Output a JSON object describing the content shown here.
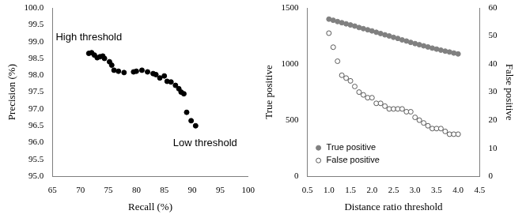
{
  "chart_data": [
    {
      "type": "scatter",
      "x_label": "Recall (%)",
      "y_label": "Precision (%)",
      "xlim": [
        65,
        100
      ],
      "xticks": [
        65,
        70,
        75,
        80,
        85,
        90,
        95,
        100
      ],
      "ylim": [
        95,
        100
      ],
      "yticks": [
        {
          "value": 95,
          "label": "95.0"
        },
        {
          "value": 95.5,
          "label": "95.5"
        },
        {
          "value": 96,
          "label": "96.0"
        },
        {
          "value": 96.5,
          "label": "96.5"
        },
        {
          "value": 97,
          "label": "97.0"
        },
        {
          "value": 97.5,
          "label": "97.5"
        },
        {
          "value": 98,
          "label": "98.0"
        },
        {
          "value": 98.5,
          "label": "98.5"
        },
        {
          "value": 99,
          "label": "99.0"
        },
        {
          "value": 99.5,
          "label": "99.5"
        },
        {
          "value": 100,
          "label": "100.0"
        }
      ],
      "grid": false,
      "annotations": [
        {
          "text": "High threshold"
        },
        {
          "text": "Low threshold"
        }
      ],
      "color": "#000000",
      "marker": "circle",
      "x": [
        71.5,
        72.0,
        72.5,
        73.0,
        73.5,
        74.0,
        74.3,
        75.2,
        75.6,
        76.0,
        76.8,
        77.8,
        79.5,
        80.0,
        81.0,
        82.0,
        83.0,
        83.5,
        84.2,
        85.0,
        85.5,
        86.2,
        87.0,
        87.6,
        88.0,
        88.5,
        89.0,
        89.8,
        90.6
      ],
      "values": [
        98.65,
        98.67,
        98.6,
        98.52,
        98.55,
        98.57,
        98.5,
        98.4,
        98.3,
        98.15,
        98.12,
        98.08,
        98.1,
        98.12,
        98.15,
        98.1,
        98.05,
        98.02,
        97.92,
        97.98,
        97.82,
        97.8,
        97.7,
        97.6,
        97.5,
        97.45,
        96.9,
        96.65,
        96.5
      ]
    },
    {
      "type": "scatter",
      "x_label": "Distance ratio threshold",
      "y_label": "True positive",
      "y2_label": "False positive",
      "xlim": [
        0.5,
        4.5
      ],
      "xticks": [
        0.5,
        {
          "value": 1,
          "label": "1.0"
        },
        1.5,
        {
          "value": 2,
          "label": "2.0"
        },
        2.5,
        {
          "value": 3,
          "label": "3.0"
        },
        3.5,
        {
          "value": 4,
          "label": "4.0"
        },
        4.5
      ],
      "ylim": [
        0,
        1500
      ],
      "yticks": [
        0,
        500,
        1000,
        1500
      ],
      "y2lim": [
        0,
        60
      ],
      "y2ticks": [
        0,
        10,
        20,
        30,
        40,
        50,
        60
      ],
      "grid": false,
      "legend": "lower left",
      "x": [
        1.0,
        1.1,
        1.2,
        1.3,
        1.4,
        1.5,
        1.6,
        1.7,
        1.8,
        1.9,
        2.0,
        2.1,
        2.2,
        2.3,
        2.4,
        2.5,
        2.6,
        2.7,
        2.8,
        2.9,
        3.0,
        3.1,
        3.2,
        3.3,
        3.4,
        3.5,
        3.6,
        3.7,
        3.8,
        3.9,
        4.0
      ],
      "series": [
        {
          "name": "True positive",
          "color": "#808080",
          "marker": "circle",
          "values": [
            1400,
            1390,
            1378,
            1368,
            1358,
            1348,
            1338,
            1325,
            1315,
            1305,
            1295,
            1283,
            1272,
            1260,
            1250,
            1238,
            1228,
            1215,
            1205,
            1193,
            1182,
            1172,
            1162,
            1152,
            1142,
            1133,
            1124,
            1115,
            1107,
            1098,
            1090
          ]
        },
        {
          "name": "False positive",
          "color": "#595959",
          "marker": "open_circle",
          "axis": "y2",
          "values": [
            51,
            46,
            41,
            36,
            35,
            34,
            32,
            30,
            29,
            28,
            28,
            26,
            26,
            25,
            24,
            24,
            24,
            24,
            23,
            23,
            21,
            20,
            19,
            18,
            17,
            17,
            17,
            16,
            15,
            15,
            15
          ]
        }
      ]
    }
  ]
}
